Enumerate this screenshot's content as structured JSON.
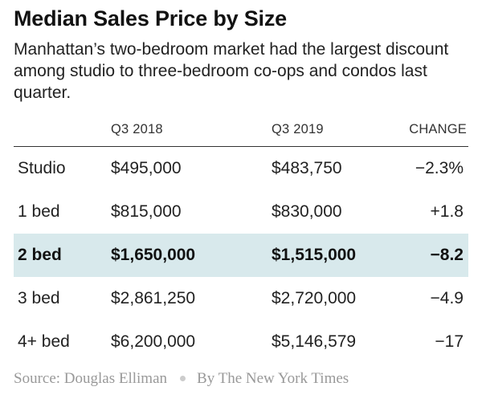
{
  "chart_data": {
    "type": "table",
    "title": "Median Sales Price by Size",
    "subtitle": "Manhattan’s two-bedroom market had the largest discount among studio to three-bedroom co-ops and condos last quarter.",
    "columns": [
      "",
      "Q3 2018",
      "Q3 2019",
      "CHANGE"
    ],
    "rows": [
      {
        "label": "Studio",
        "q3_2018": "$495,000",
        "q3_2019": "$483,750",
        "change": "−2.3%",
        "highlight": false
      },
      {
        "label": "1 bed",
        "q3_2018": "$815,000",
        "q3_2019": "$830,000",
        "change": "+1.8",
        "highlight": false
      },
      {
        "label": "2 bed",
        "q3_2018": "$1,650,000",
        "q3_2019": "$1,515,000",
        "change": "−8.2",
        "highlight": true
      },
      {
        "label": "3 bed",
        "q3_2018": "$2,861,250",
        "q3_2019": "$2,720,000",
        "change": "−4.9",
        "highlight": false
      },
      {
        "label": "4+ bed",
        "q3_2018": "$6,200,000",
        "q3_2019": "$5,146,579",
        "change": "−17",
        "highlight": false
      }
    ],
    "values": {
      "Q3 2018": [
        495000,
        815000,
        1650000,
        2861250,
        6200000
      ],
      "Q3 2019": [
        483750,
        830000,
        1515000,
        2720000,
        5146579
      ],
      "CHANGE": [
        -2.3,
        1.8,
        -8.2,
        -4.9,
        -17
      ]
    },
    "highlight_color": "#d8e9ec"
  },
  "footer": {
    "source": "Source: Douglas Elliman",
    "credit": "By The New York Times"
  }
}
